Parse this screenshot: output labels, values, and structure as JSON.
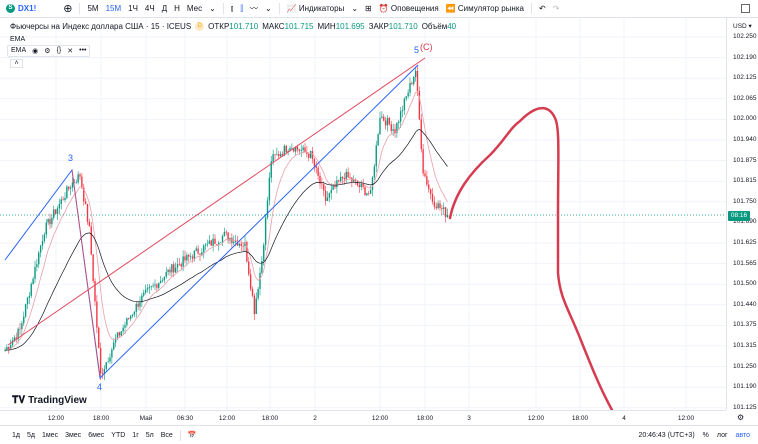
{
  "toolbar": {
    "symbol": "DX1!",
    "symbol_icon": "S",
    "timeframes": [
      "5М",
      "15М",
      "1Ч",
      "4Ч",
      "Д",
      "Н",
      "Мес"
    ],
    "active_timeframe": "15М",
    "indicators": "Индикаторы",
    "alerts": "Оповещения",
    "replay": "Симулятор рынка"
  },
  "legend": {
    "title": "Фьючерсы на Индекс доллара США · 15 · ICEUS",
    "badge": "D",
    "open_label": "ОТКР",
    "open": "101.710",
    "high_label": "МАКС",
    "high": "101.715",
    "low_label": "МИН",
    "low": "101.695",
    "close_label": "ЗАКР",
    "close": "101.710",
    "vol_label": "Объём",
    "vol": "40"
  },
  "indicators": {
    "ema1": "EMA",
    "ema2": "EMA"
  },
  "price_axis": {
    "currency": "USD ▾",
    "labels": [
      "102.250",
      "102.190",
      "102.125",
      "102.065",
      "102.000",
      "101.940",
      "101.875",
      "101.815",
      "101.750",
      "101.690",
      "101.625",
      "101.565",
      "101.500",
      "101.440",
      "101.375",
      "101.315",
      "101.250",
      "101.190",
      "101.125"
    ],
    "current_tag": "08:16"
  },
  "time_axis": [
    "12:00",
    "18:00",
    "Май",
    "06:30",
    "12:00",
    "18:00",
    "2",
    "12:00",
    "18:00",
    "3",
    "12:00",
    "18:00",
    "4",
    "12:00"
  ],
  "wave_labels": {
    "w3": "3",
    "w4": "4",
    "w5": "5",
    "wc": "(C)"
  },
  "branding": "TradingView",
  "bottom": {
    "ranges": [
      "1д",
      "5д",
      "1мес",
      "3мес",
      "6мес",
      "YTD",
      "1г",
      "5л",
      "Все"
    ],
    "clock": "20:46:43 (UTC+3)",
    "percent": "%",
    "log": "лог",
    "auto": "авто"
  },
  "colors": {
    "up": "#089981",
    "down": "#f23645",
    "ema_fast": "#e8a0a8",
    "ema_slow": "#131722",
    "wave": "#2962ff",
    "channel": "#e04a5f",
    "drawing": "#d63c50"
  },
  "chart_data": {
    "type": "candlestick",
    "symbol": "DX1!",
    "interval": "15",
    "price_range": [
      101.125,
      102.25
    ],
    "keypoints": [
      [
        0,
        101.3
      ],
      [
        8,
        101.361
      ],
      [
        21,
        101.664
      ],
      [
        35,
        101.801
      ],
      [
        40,
        101.831
      ],
      [
        45,
        101.664
      ],
      [
        51,
        101.225
      ],
      [
        59,
        101.331
      ],
      [
        72,
        101.452
      ],
      [
        88,
        101.543
      ],
      [
        104,
        101.604
      ],
      [
        117,
        101.649
      ],
      [
        128,
        101.619
      ],
      [
        133,
        101.422
      ],
      [
        137,
        101.573
      ],
      [
        142,
        101.877
      ],
      [
        152,
        101.922
      ],
      [
        163,
        101.892
      ],
      [
        171,
        101.755
      ],
      [
        181,
        101.831
      ],
      [
        195,
        101.771
      ],
      [
        200,
        102.013
      ],
      [
        208,
        101.968
      ],
      [
        219,
        102.15
      ],
      [
        223,
        101.846
      ],
      [
        228,
        101.755
      ],
      [
        236,
        101.71
      ]
    ],
    "last_close": 101.71
  }
}
